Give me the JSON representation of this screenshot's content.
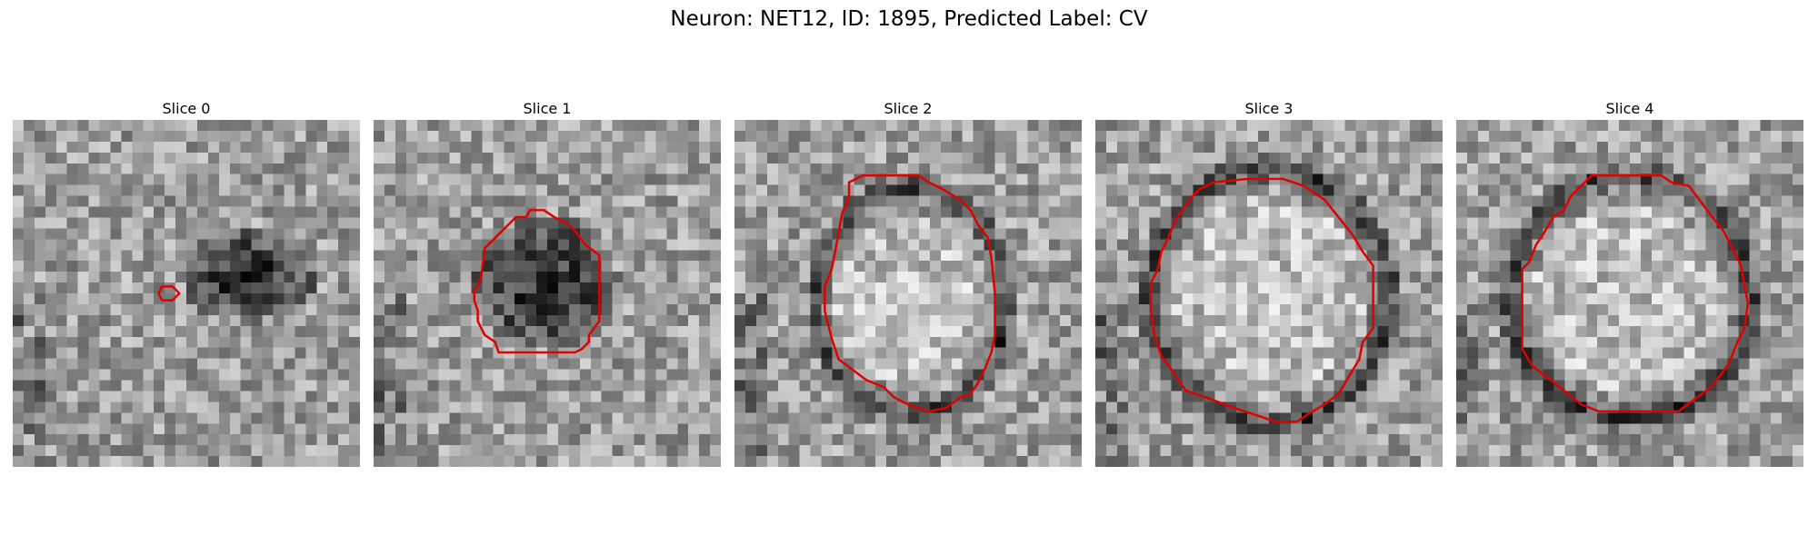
{
  "figure": {
    "title": "Neuron: NET12, ID: 1895, Predicted Label: CV"
  },
  "panels": [
    {
      "label": "Slice 0",
      "dark_spot": [
        0.68,
        0.45,
        0.2,
        0.13
      ],
      "contour": [
        [
          0.43,
          0.48
        ],
        [
          0.46,
          0.48
        ],
        [
          0.48,
          0.5
        ],
        [
          0.46,
          0.52
        ],
        [
          0.43,
          0.52
        ],
        [
          0.42,
          0.5
        ]
      ]
    },
    {
      "label": "Slice 1",
      "dark_spot": [
        0.49,
        0.47,
        0.22,
        0.19
      ],
      "contour": [
        [
          0.45,
          0.26
        ],
        [
          0.49,
          0.26
        ],
        [
          0.52,
          0.28
        ],
        [
          0.56,
          0.3
        ],
        [
          0.58,
          0.32
        ],
        [
          0.61,
          0.36
        ],
        [
          0.65,
          0.39
        ],
        [
          0.65,
          0.58
        ],
        [
          0.62,
          0.62
        ],
        [
          0.62,
          0.64
        ],
        [
          0.6,
          0.66
        ],
        [
          0.58,
          0.67
        ],
        [
          0.48,
          0.67
        ],
        [
          0.36,
          0.67
        ],
        [
          0.35,
          0.64
        ],
        [
          0.32,
          0.62
        ],
        [
          0.3,
          0.58
        ],
        [
          0.3,
          0.55
        ],
        [
          0.29,
          0.52
        ],
        [
          0.29,
          0.49
        ],
        [
          0.3,
          0.48
        ],
        [
          0.31,
          0.45
        ],
        [
          0.32,
          0.37
        ],
        [
          0.36,
          0.33
        ],
        [
          0.39,
          0.3
        ],
        [
          0.41,
          0.28
        ],
        [
          0.44,
          0.28
        ]
      ]
    },
    {
      "label": "Slice 2",
      "ring": [
        0.51,
        0.52,
        0.27,
        0.32
      ],
      "contour": [
        [
          0.33,
          0.18
        ],
        [
          0.37,
          0.16
        ],
        [
          0.53,
          0.16
        ],
        [
          0.56,
          0.18
        ],
        [
          0.6,
          0.2
        ],
        [
          0.65,
          0.23
        ],
        [
          0.68,
          0.26
        ],
        [
          0.7,
          0.3
        ],
        [
          0.73,
          0.34
        ],
        [
          0.74,
          0.4
        ],
        [
          0.75,
          0.5
        ],
        [
          0.75,
          0.62
        ],
        [
          0.74,
          0.67
        ],
        [
          0.72,
          0.72
        ],
        [
          0.7,
          0.76
        ],
        [
          0.68,
          0.79
        ],
        [
          0.65,
          0.8
        ],
        [
          0.61,
          0.83
        ],
        [
          0.56,
          0.84
        ],
        [
          0.5,
          0.82
        ],
        [
          0.46,
          0.8
        ],
        [
          0.43,
          0.77
        ],
        [
          0.38,
          0.75
        ],
        [
          0.34,
          0.72
        ],
        [
          0.3,
          0.69
        ],
        [
          0.28,
          0.63
        ],
        [
          0.26,
          0.55
        ],
        [
          0.26,
          0.48
        ],
        [
          0.28,
          0.43
        ],
        [
          0.29,
          0.38
        ],
        [
          0.31,
          0.27
        ],
        [
          0.33,
          0.22
        ]
      ]
    },
    {
      "label": "Slice 3",
      "ring": [
        0.5,
        0.51,
        0.34,
        0.36
      ],
      "contour": [
        [
          0.34,
          0.18
        ],
        [
          0.44,
          0.17
        ],
        [
          0.54,
          0.17
        ],
        [
          0.6,
          0.19
        ],
        [
          0.66,
          0.23
        ],
        [
          0.7,
          0.28
        ],
        [
          0.74,
          0.33
        ],
        [
          0.77,
          0.38
        ],
        [
          0.8,
          0.42
        ],
        [
          0.8,
          0.48
        ],
        [
          0.8,
          0.6
        ],
        [
          0.77,
          0.64
        ],
        [
          0.76,
          0.69
        ],
        [
          0.73,
          0.74
        ],
        [
          0.7,
          0.79
        ],
        [
          0.66,
          0.82
        ],
        [
          0.61,
          0.85
        ],
        [
          0.58,
          0.87
        ],
        [
          0.52,
          0.87
        ],
        [
          0.46,
          0.85
        ],
        [
          0.4,
          0.83
        ],
        [
          0.32,
          0.8
        ],
        [
          0.26,
          0.78
        ],
        [
          0.22,
          0.72
        ],
        [
          0.19,
          0.68
        ],
        [
          0.17,
          0.62
        ],
        [
          0.16,
          0.55
        ],
        [
          0.16,
          0.47
        ],
        [
          0.18,
          0.43
        ],
        [
          0.19,
          0.38
        ],
        [
          0.21,
          0.34
        ],
        [
          0.23,
          0.29
        ],
        [
          0.25,
          0.26
        ],
        [
          0.28,
          0.22
        ],
        [
          0.3,
          0.2
        ]
      ]
    },
    {
      "label": "Slice 4",
      "ring": [
        0.5,
        0.51,
        0.34,
        0.34
      ],
      "contour": [
        [
          0.39,
          0.16
        ],
        [
          0.59,
          0.16
        ],
        [
          0.62,
          0.18
        ],
        [
          0.67,
          0.19
        ],
        [
          0.7,
          0.23
        ],
        [
          0.73,
          0.27
        ],
        [
          0.77,
          0.32
        ],
        [
          0.8,
          0.38
        ],
        [
          0.82,
          0.42
        ],
        [
          0.84,
          0.53
        ],
        [
          0.83,
          0.6
        ],
        [
          0.81,
          0.64
        ],
        [
          0.79,
          0.69
        ],
        [
          0.78,
          0.71
        ],
        [
          0.75,
          0.75
        ],
        [
          0.72,
          0.78
        ],
        [
          0.68,
          0.81
        ],
        [
          0.64,
          0.84
        ],
        [
          0.59,
          0.84
        ],
        [
          0.41,
          0.84
        ],
        [
          0.36,
          0.82
        ],
        [
          0.31,
          0.78
        ],
        [
          0.26,
          0.74
        ],
        [
          0.22,
          0.71
        ],
        [
          0.19,
          0.66
        ],
        [
          0.19,
          0.43
        ],
        [
          0.21,
          0.41
        ],
        [
          0.23,
          0.36
        ],
        [
          0.25,
          0.33
        ],
        [
          0.28,
          0.28
        ],
        [
          0.31,
          0.26
        ],
        [
          0.33,
          0.22
        ],
        [
          0.35,
          0.2
        ]
      ]
    }
  ]
}
